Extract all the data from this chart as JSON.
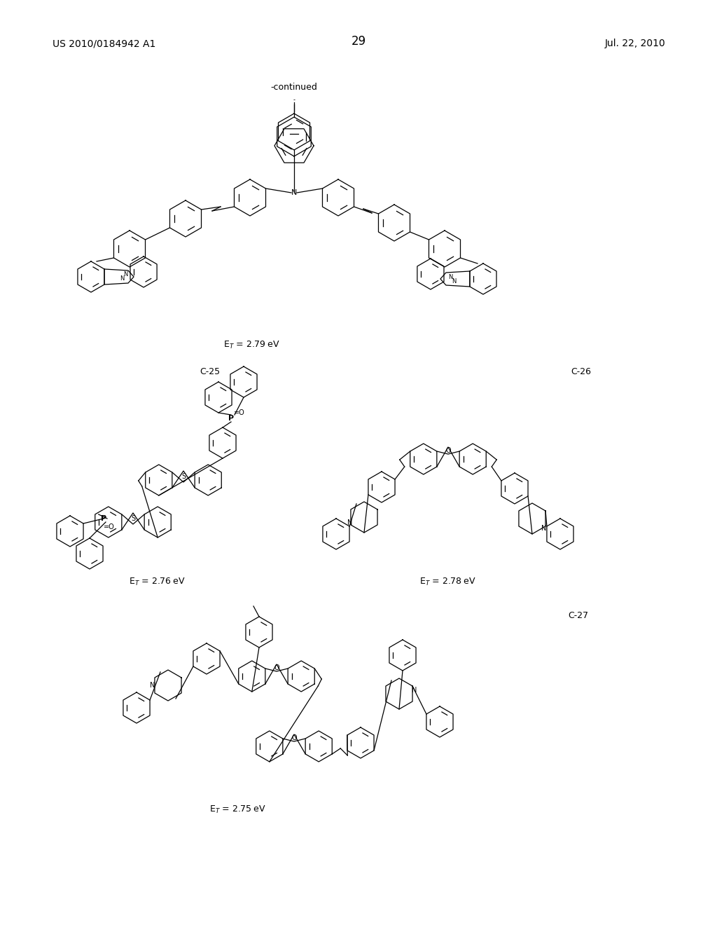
{
  "background_color": "#ffffff",
  "page_number": "29",
  "header_left": "US 2010/0184942 A1",
  "header_right": "Jul. 22, 2010",
  "continued_label": "-continued",
  "font_size_header": 10,
  "font_size_page": 12,
  "font_size_label": 9,
  "font_size_energy": 9,
  "font_size_atom": 7,
  "lw": 0.9
}
